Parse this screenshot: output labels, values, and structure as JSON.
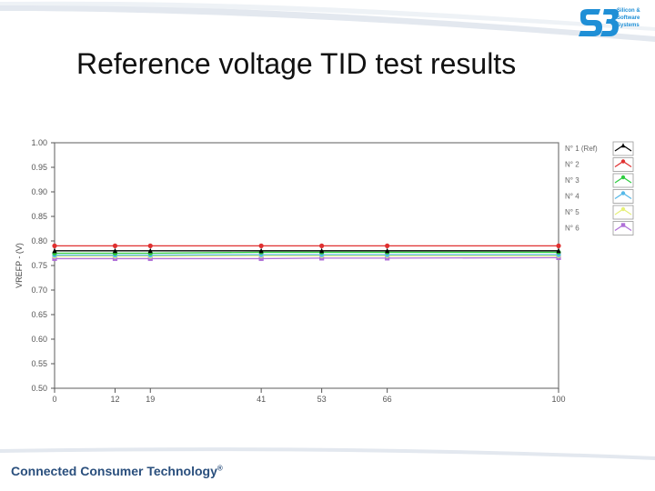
{
  "slide": {
    "title": "Reference voltage TID test results",
    "footer": "Connected Consumer Technology",
    "footer_mark": "®"
  },
  "logo": {
    "lines": [
      "Silicon &",
      "Software",
      "Systems"
    ],
    "color": "#1f8fd6"
  },
  "chart_data": {
    "type": "line",
    "title": "",
    "xlabel": "",
    "ylabel": "VREFP - (V)",
    "x": [
      0,
      12,
      19,
      41,
      53,
      66,
      100
    ],
    "x_tick_labels": [
      "0",
      "12",
      "19",
      "41",
      "53",
      "66",
      "100"
    ],
    "xlim": [
      0,
      100
    ],
    "ylim": [
      0.5,
      1.0
    ],
    "y_ticks": [
      0.5,
      0.55,
      0.6,
      0.65,
      0.7,
      0.75,
      0.8,
      0.85,
      0.9,
      0.95,
      1.0
    ],
    "y_tick_labels": [
      "0.50",
      "0.55",
      "0.60",
      "0.65",
      "0.70",
      "0.75",
      "0.80",
      "0.85",
      "0.90",
      "0.95",
      "1.00"
    ],
    "grid": false,
    "legend_position": "top-right",
    "series": [
      {
        "name": "N° 1 (Ref)",
        "color": "#000000",
        "marker": "triangle",
        "values": [
          0.78,
          0.78,
          0.78,
          0.78,
          0.78,
          0.78,
          0.78
        ]
      },
      {
        "name": "N° 2",
        "color": "#e03030",
        "marker": "circle",
        "values": [
          0.79,
          0.79,
          0.79,
          0.79,
          0.79,
          0.79,
          0.79
        ]
      },
      {
        "name": "N° 3",
        "color": "#2ecc40",
        "marker": "circle",
        "values": [
          0.775,
          0.775,
          0.775,
          0.777,
          0.777,
          0.777,
          0.777
        ]
      },
      {
        "name": "N° 4",
        "color": "#55b8e8",
        "marker": "circle",
        "values": [
          0.771,
          0.771,
          0.771,
          0.772,
          0.772,
          0.772,
          0.772
        ]
      },
      {
        "name": "N° 5",
        "color": "#e6f07a",
        "marker": "circle",
        "values": [
          0.769,
          0.769,
          0.769,
          0.77,
          0.77,
          0.77,
          0.77
        ]
      },
      {
        "name": "N° 6",
        "color": "#b070d8",
        "marker": "square",
        "values": [
          0.764,
          0.764,
          0.764,
          0.764,
          0.765,
          0.765,
          0.766
        ]
      }
    ]
  }
}
